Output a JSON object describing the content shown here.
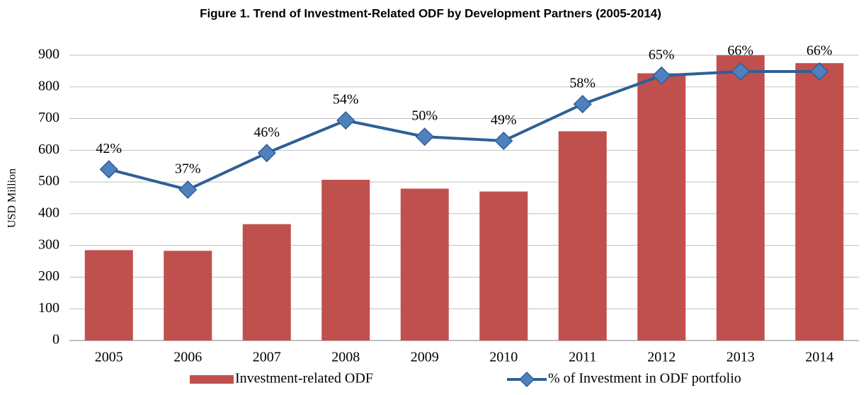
{
  "chart_data": {
    "type": "bar-line",
    "title": "Figure 1. Trend of Investment-Related ODF by Development Partners (2005-2014)",
    "y_label": "USD Million",
    "categories": [
      "2005",
      "2006",
      "2007",
      "2008",
      "2009",
      "2010",
      "2011",
      "2012",
      "2013",
      "2014"
    ],
    "series": [
      {
        "name": "Investment-related ODF",
        "type": "bar",
        "color": "#c0504d",
        "values": [
          285,
          283,
          367,
          507,
          479,
          470,
          660,
          843,
          900,
          875
        ]
      },
      {
        "name": "% of Investment in ODF portfolio",
        "type": "line",
        "axis": "y2",
        "color": "#4f81bd",
        "values": [
          42,
          37,
          46,
          54,
          50,
          49,
          58,
          65,
          66,
          66
        ],
        "value_labels": [
          "42%",
          "37%",
          "46%",
          "54%",
          "50%",
          "49%",
          "58%",
          "65%",
          "66%",
          "66%"
        ]
      }
    ],
    "ylim": [
      0,
      900
    ],
    "yticks": [
      0,
      100,
      200,
      300,
      400,
      500,
      600,
      700,
      800,
      900
    ],
    "y2lim": [
      0,
      70
    ],
    "grid": true,
    "legend": "bottom"
  }
}
